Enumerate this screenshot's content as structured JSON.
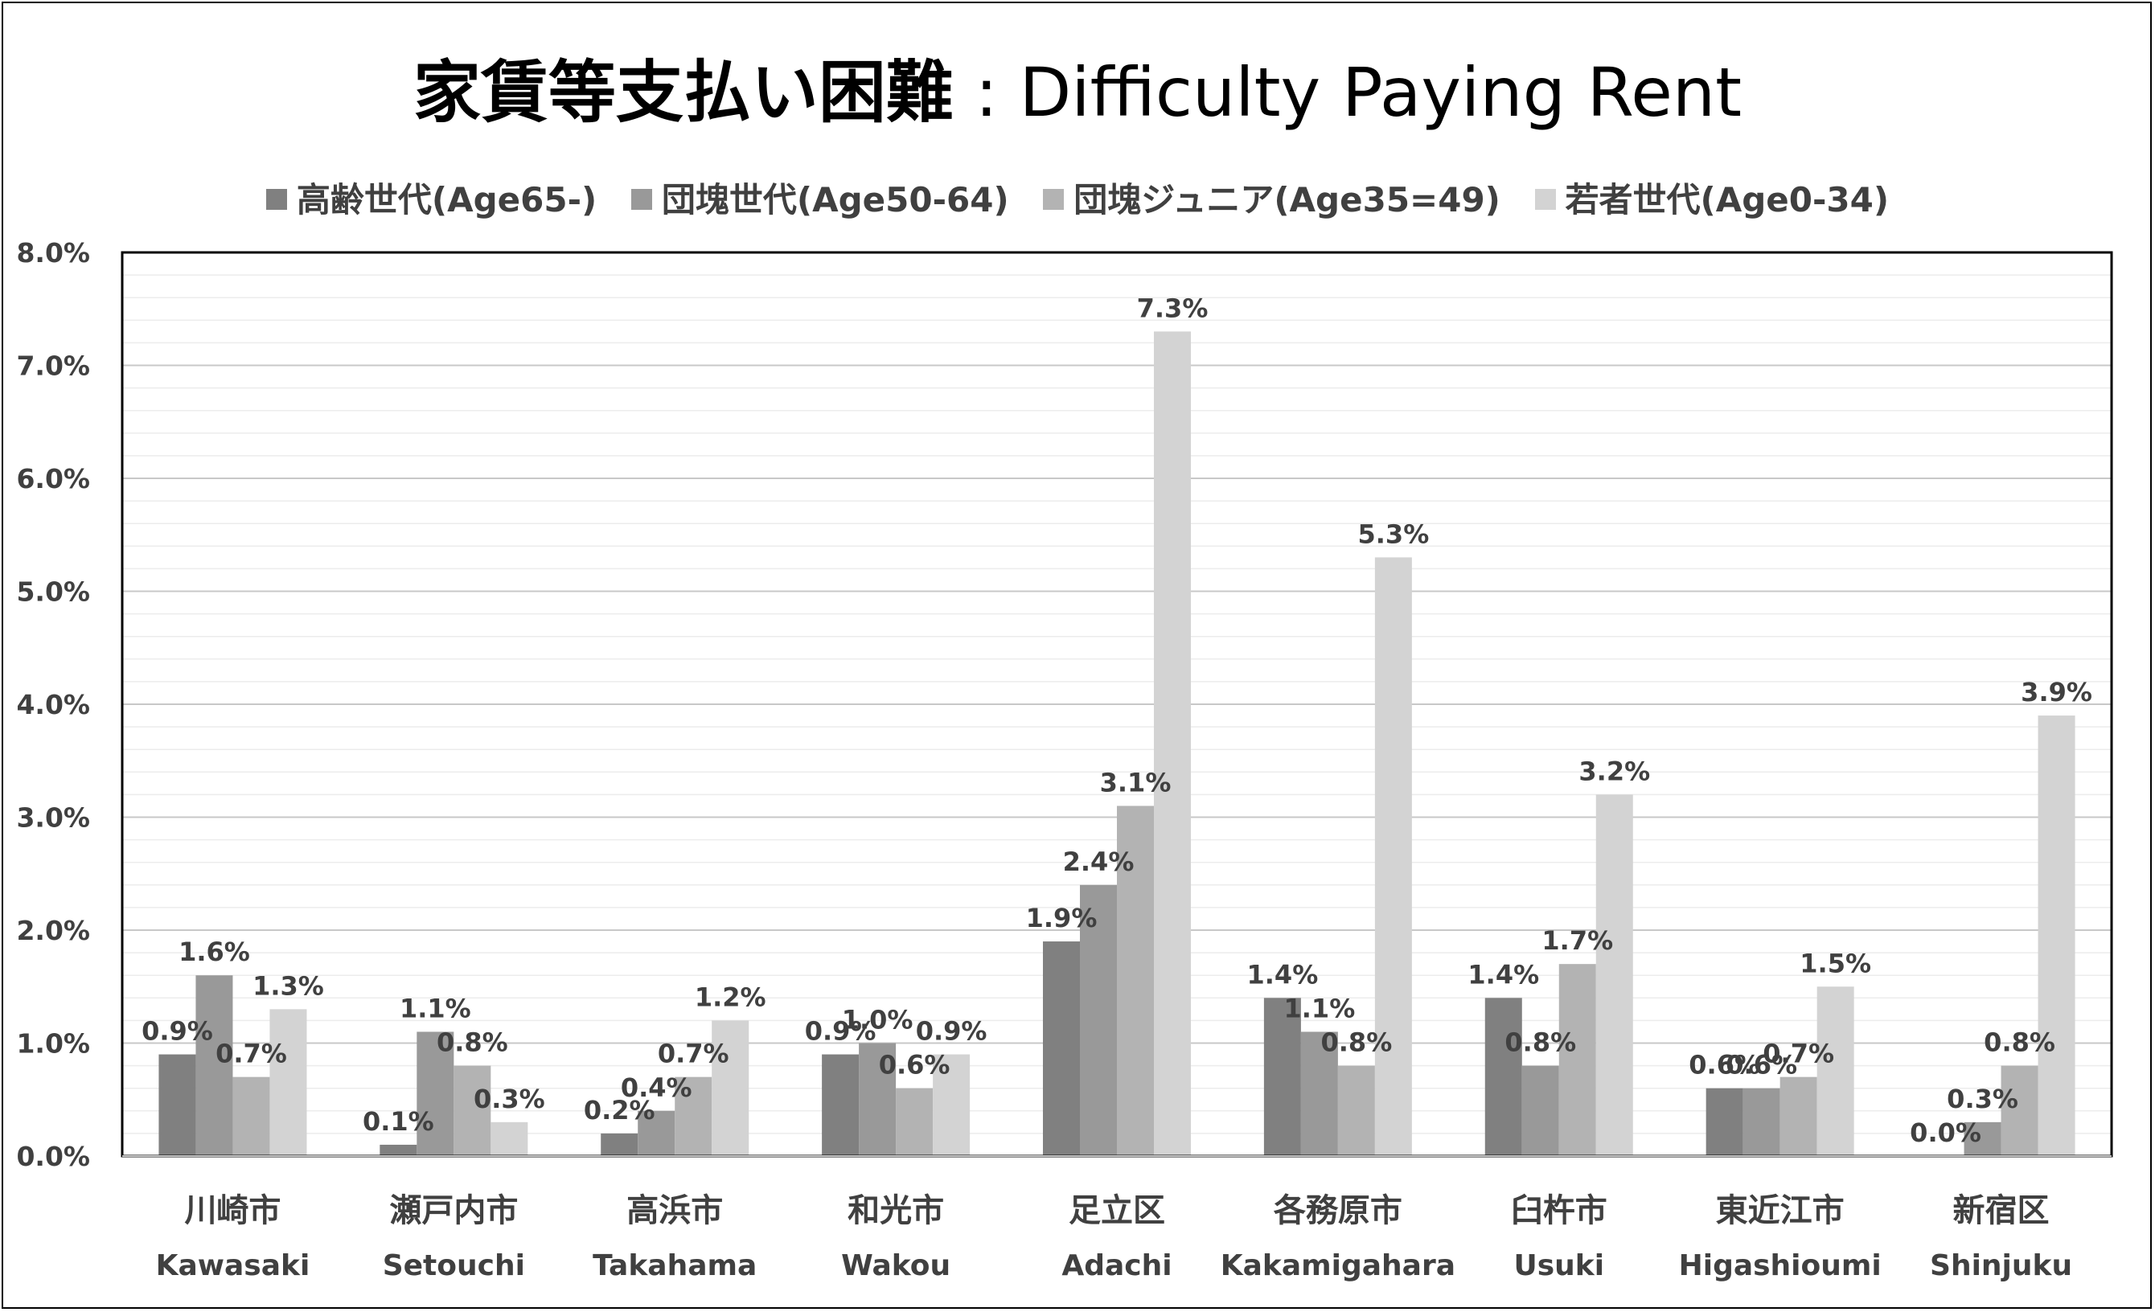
{
  "title": {
    "jp": "家賃等支払い困難",
    "sep": " : ",
    "en": "Difficulty Paying Rent"
  },
  "colors": [
    "#808080",
    "#999999",
    "#b3b3b3",
    "#d3d3d3"
  ],
  "chart_data": {
    "type": "bar",
    "categories": [
      {
        "jp": "川崎市",
        "en": "Kawasaki"
      },
      {
        "jp": "瀬戸内市",
        "en": "Setouchi"
      },
      {
        "jp": "高浜市",
        "en": "Takahama"
      },
      {
        "jp": "和光市",
        "en": "Wakou"
      },
      {
        "jp": "足立区",
        "en": "Adachi"
      },
      {
        "jp": "各務原市",
        "en": "Kakamigahara"
      },
      {
        "jp": "臼杵市",
        "en": "Usuki"
      },
      {
        "jp": "東近江市",
        "en": "Higashioumi"
      },
      {
        "jp": "新宿区",
        "en": "Shinjuku"
      }
    ],
    "series": [
      {
        "name": "高齢世代(Age65-)",
        "values": [
          0.9,
          0.1,
          0.2,
          0.9,
          1.9,
          1.4,
          1.4,
          0.6,
          0.0
        ],
        "labels": [
          "0.9%",
          "0.1%",
          "0.2%",
          "0.9%",
          "1.9%",
          "1.4%",
          "1.4%",
          "0.6%",
          "0.0%"
        ]
      },
      {
        "name": "団塊世代(Age50-64)",
        "values": [
          1.6,
          1.1,
          0.4,
          1.0,
          2.4,
          1.1,
          0.8,
          0.6,
          0.3
        ],
        "labels": [
          "1.6%",
          "1.1%",
          "0.4%",
          "1.0%",
          "2.4%",
          "1.1%",
          "0.8%",
          "0.6%",
          "0.3%"
        ]
      },
      {
        "name": "団塊ジュニア(Age35=49)",
        "values": [
          0.7,
          0.8,
          0.7,
          0.6,
          3.1,
          0.8,
          1.7,
          0.7,
          0.8
        ],
        "labels": [
          "0.7%",
          "0.8%",
          "0.7%",
          "0.6%",
          "3.1%",
          "0.8%",
          "1.7%",
          "0.7%",
          "0.8%"
        ]
      },
      {
        "name": "若者世代(Age0-34)",
        "values": [
          1.3,
          0.3,
          1.2,
          0.9,
          7.3,
          5.3,
          3.2,
          1.5,
          3.9
        ],
        "labels": [
          "1.3%",
          "0.3%",
          "1.2%",
          "0.9%",
          "7.3%",
          "5.3%",
          "3.2%",
          "1.5%",
          "3.9%"
        ]
      }
    ],
    "ylim": [
      0,
      8
    ],
    "yticks": [
      "0.0%",
      "1.0%",
      "2.0%",
      "3.0%",
      "4.0%",
      "5.0%",
      "6.0%",
      "7.0%",
      "8.0%"
    ],
    "grid": true,
    "legend_position": "top"
  }
}
